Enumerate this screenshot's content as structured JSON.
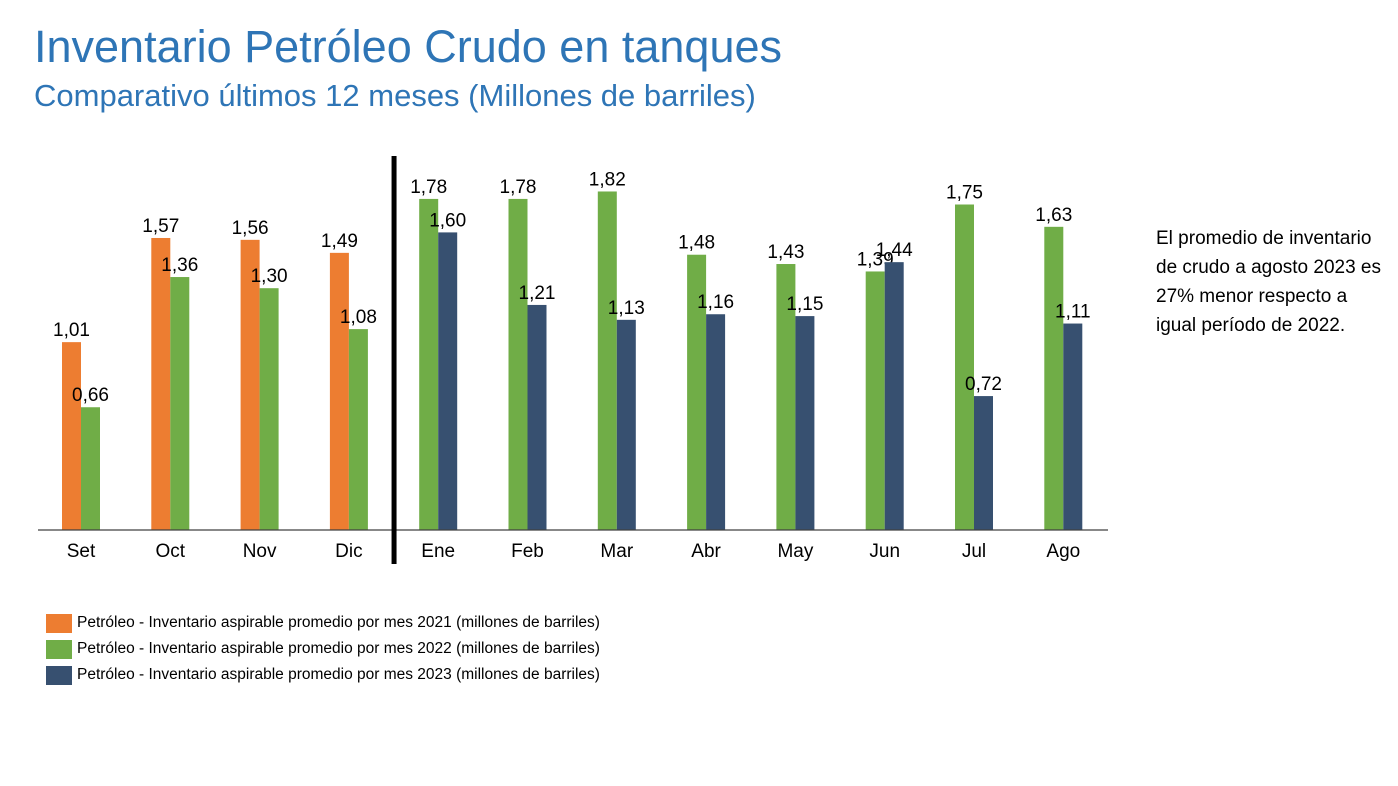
{
  "header": {
    "title": "Inventario Petróleo Crudo en tanques",
    "subtitle": "Comparativo últimos 12 meses (Millones de barriles)"
  },
  "note": {
    "text": "El promedio de inventario de crudo a agosto 2023 es 27% menor respecto a igual período de 2022."
  },
  "chart_data": {
    "type": "bar",
    "title": "",
    "xlabel": "",
    "ylabel": "",
    "grid": false,
    "legend_position": "bottom-left",
    "categories": [
      "Set",
      "Oct",
      "Nov",
      "Dic",
      "Ene",
      "Feb",
      "Mar",
      "Abr",
      "May",
      "Jun",
      "Jul",
      "Ago"
    ],
    "series": [
      {
        "name": "Petróleo - Inventario aspirable promedio por mes 2021 (millones de barriles)",
        "color": "#ed7d31",
        "values": [
          1.01,
          1.57,
          1.56,
          1.49,
          null,
          null,
          null,
          null,
          null,
          null,
          null,
          null
        ],
        "labels": [
          "1,01",
          "1,57",
          "1,56",
          "1,49",
          "",
          "",
          "",
          "",
          "",
          "",
          "",
          ""
        ]
      },
      {
        "name": "Petróleo - Inventario aspirable promedio por mes 2022 (millones de barriles)",
        "color": "#70ad47",
        "values": [
          0.66,
          1.36,
          1.3,
          1.08,
          1.78,
          1.78,
          1.82,
          1.48,
          1.43,
          1.39,
          1.75,
          1.63
        ],
        "labels": [
          "0,66",
          "1,36",
          "1,30",
          "1,08",
          "1,78",
          "1,78",
          "1,82",
          "1,48",
          "1,43",
          "1,39",
          "1,75",
          "1,63"
        ]
      },
      {
        "name": "Petróleo - Inventario aspirable promedio por mes 2023 (millones de barriles)",
        "color": "#375070",
        "values": [
          null,
          null,
          null,
          null,
          1.6,
          1.21,
          1.13,
          1.16,
          1.15,
          1.44,
          0.72,
          1.11
        ],
        "labels": [
          "",
          "",
          "",
          "",
          "1,60",
          "1,21",
          "1,13",
          "1,16",
          "1,15",
          "1,44",
          "0,72",
          "1,11"
        ]
      }
    ],
    "ylim": [
      0,
      2.0
    ],
    "divider_after_category": "Dic"
  }
}
